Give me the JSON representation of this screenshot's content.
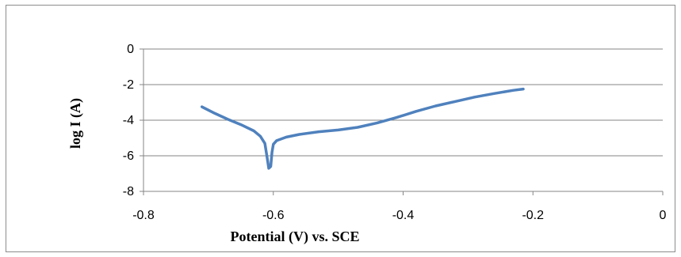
{
  "chart_data": {
    "type": "line",
    "title": "",
    "xlabel": "Potential (V) vs. SCE",
    "ylabel": "log I (A)",
    "xlim": [
      -0.8,
      0
    ],
    "ylim": [
      -8,
      0
    ],
    "x_ticks": [
      -0.8,
      -0.6,
      -0.4,
      -0.2,
      0
    ],
    "y_ticks": [
      0,
      -2,
      -4,
      -6,
      -8
    ],
    "x_tick_labels": [
      "-0.8",
      "-0.6",
      "-0.4",
      "-0.2",
      "0"
    ],
    "y_tick_labels": [
      "0",
      "-2",
      "-4",
      "-6",
      "-8"
    ],
    "grid": "horizontal",
    "legend": "none",
    "series": [
      {
        "color": "#4f81bd",
        "points": [
          [
            -0.71,
            -3.25
          ],
          [
            -0.69,
            -3.62
          ],
          [
            -0.67,
            -3.95
          ],
          [
            -0.65,
            -4.25
          ],
          [
            -0.63,
            -4.6
          ],
          [
            -0.62,
            -4.9
          ],
          [
            -0.613,
            -5.3
          ],
          [
            -0.61,
            -6.0
          ],
          [
            -0.607,
            -6.7
          ],
          [
            -0.604,
            -6.6
          ],
          [
            -0.602,
            -5.8
          ],
          [
            -0.6,
            -5.35
          ],
          [
            -0.595,
            -5.15
          ],
          [
            -0.58,
            -4.95
          ],
          [
            -0.56,
            -4.8
          ],
          [
            -0.53,
            -4.65
          ],
          [
            -0.5,
            -4.55
          ],
          [
            -0.47,
            -4.4
          ],
          [
            -0.44,
            -4.15
          ],
          [
            -0.41,
            -3.85
          ],
          [
            -0.38,
            -3.5
          ],
          [
            -0.35,
            -3.2
          ],
          [
            -0.32,
            -2.95
          ],
          [
            -0.29,
            -2.7
          ],
          [
            -0.26,
            -2.5
          ],
          [
            -0.23,
            -2.32
          ],
          [
            -0.215,
            -2.25
          ]
        ]
      }
    ]
  }
}
